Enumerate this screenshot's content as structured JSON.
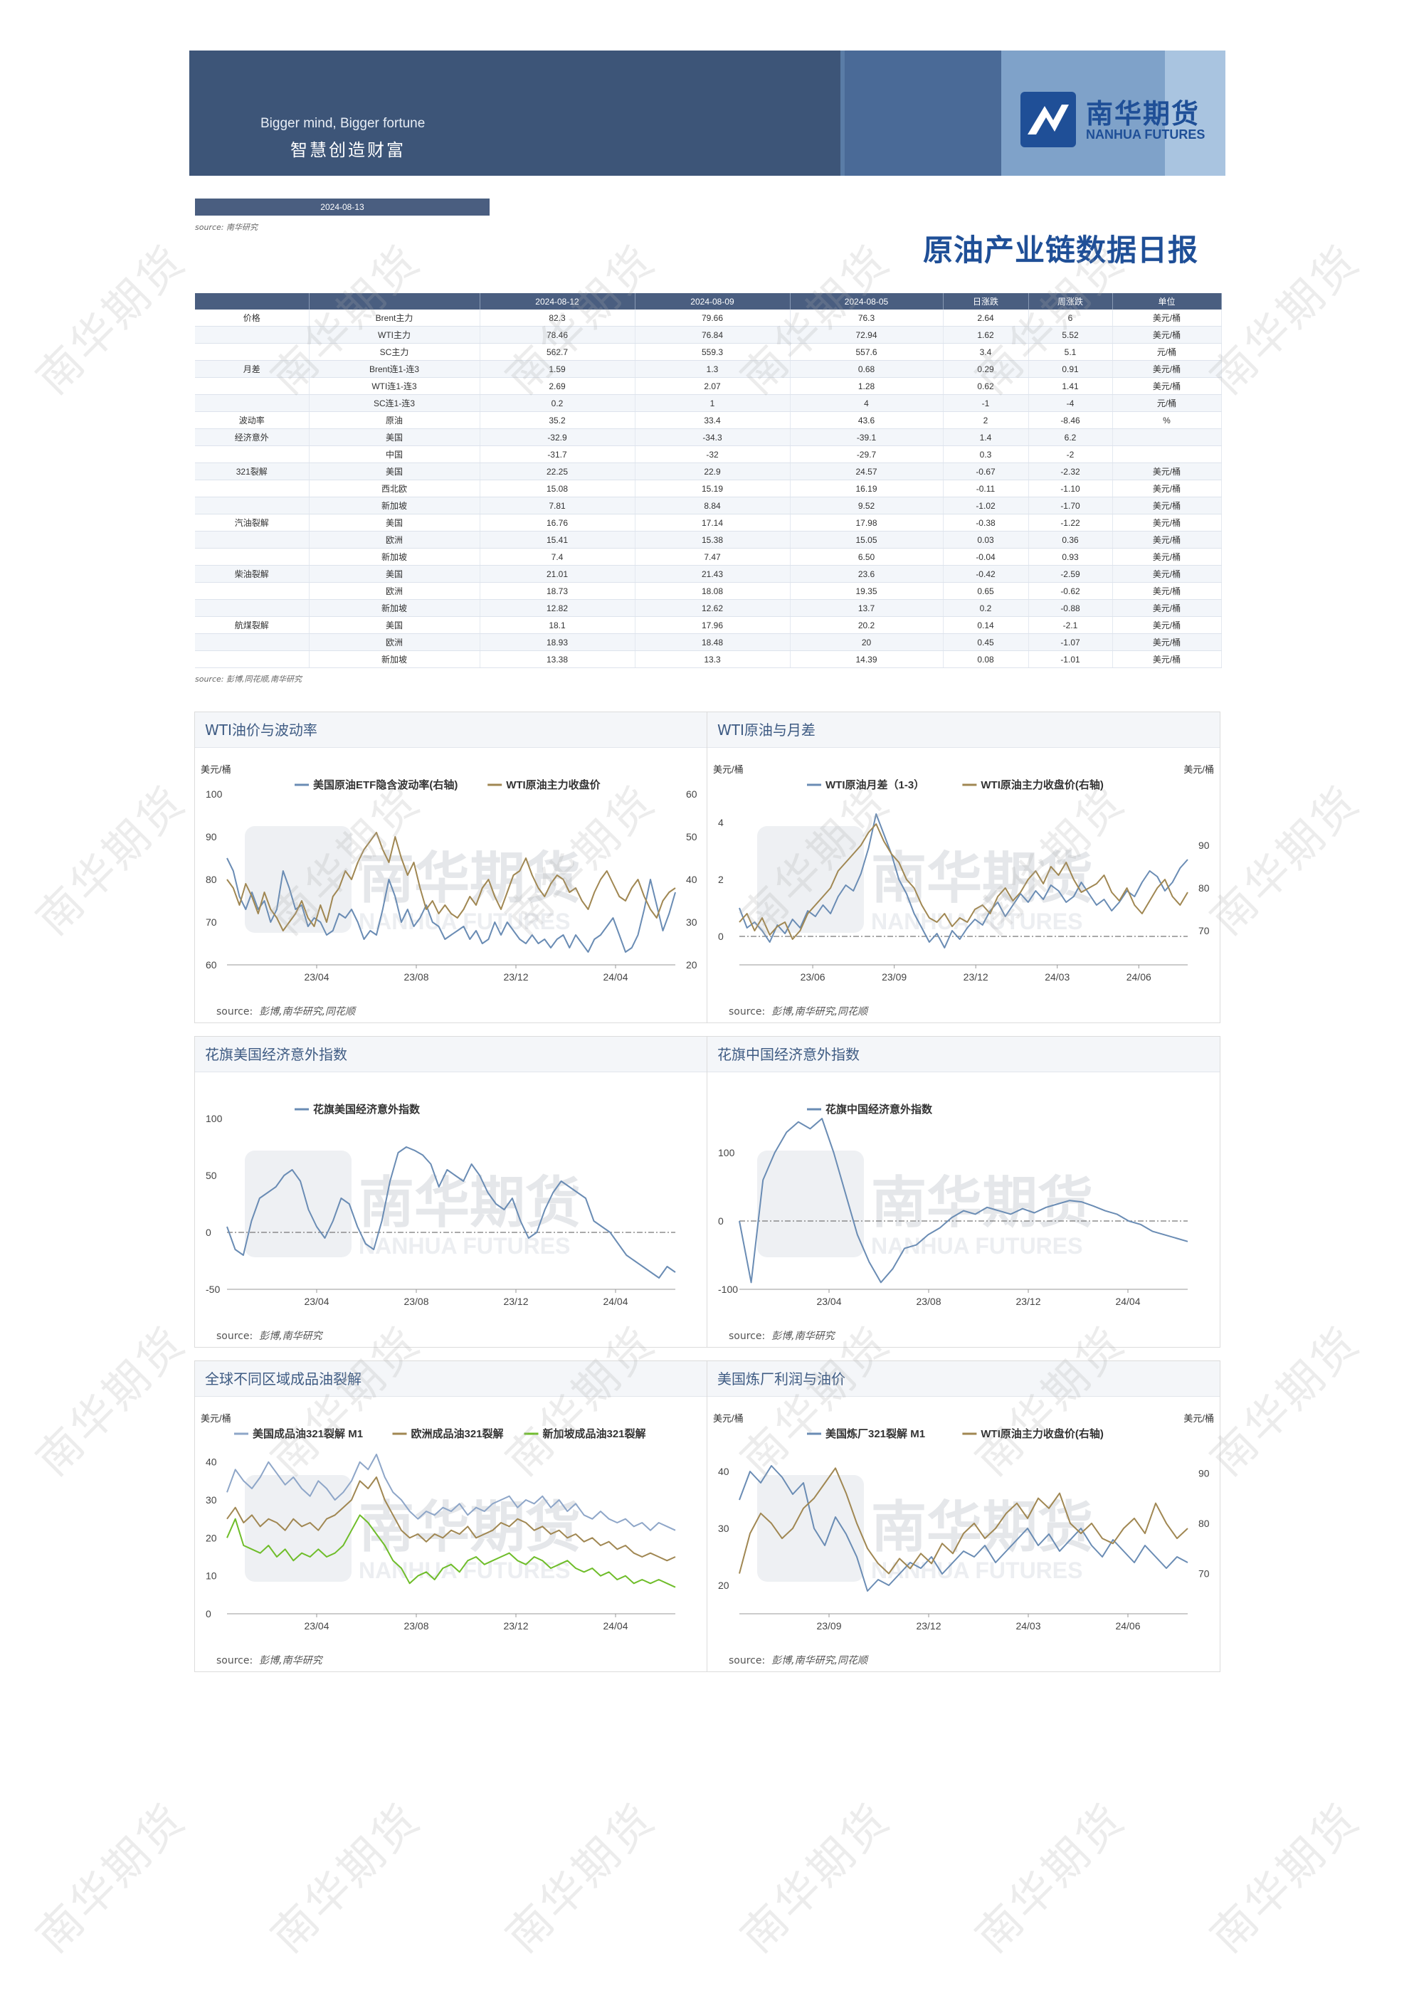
{
  "header": {
    "slogan_en": "Bigger mind, Bigger fortune",
    "slogan_cn": "智慧创造财富",
    "logo_cn": "南华期货",
    "logo_en": "NANHUA FUTURES"
  },
  "date": "2024-08-13",
  "source_top_label": "source:",
  "source_top_value": "南华研究",
  "title": "原油产业链数据日报",
  "table": {
    "headers": [
      "",
      "",
      "2024-08-12",
      "2024-08-09",
      "2024-08-05",
      "日涨跌",
      "周涨跌",
      "单位"
    ],
    "rows": [
      [
        "价格",
        "Brent主力",
        "82.3",
        "79.66",
        "76.3",
        "2.64",
        "6",
        "美元/桶"
      ],
      [
        "",
        "WTI主力",
        "78.46",
        "76.84",
        "72.94",
        "1.62",
        "5.52",
        "美元/桶"
      ],
      [
        "",
        "SC主力",
        "562.7",
        "559.3",
        "557.6",
        "3.4",
        "5.1",
        "元/桶"
      ],
      [
        "月差",
        "Brent连1-连3",
        "1.59",
        "1.3",
        "0.68",
        "0.29",
        "0.91",
        "美元/桶"
      ],
      [
        "",
        "WTI连1-连3",
        "2.69",
        "2.07",
        "1.28",
        "0.62",
        "1.41",
        "美元/桶"
      ],
      [
        "",
        "SC连1-连3",
        "0.2",
        "1",
        "4",
        "-1",
        "-4",
        "元/桶"
      ],
      [
        "波动率",
        "原油",
        "35.2",
        "33.4",
        "43.6",
        "2",
        "-8.46",
        "%"
      ],
      [
        "经济意外",
        "美国",
        "-32.9",
        "-34.3",
        "-39.1",
        "1.4",
        "6.2",
        ""
      ],
      [
        "",
        "中国",
        "-31.7",
        "-32",
        "-29.7",
        "0.3",
        "-2",
        ""
      ],
      [
        "321裂解",
        "美国",
        "22.25",
        "22.9",
        "24.57",
        "-0.67",
        "-2.32",
        "美元/桶"
      ],
      [
        "",
        "西北欧",
        "15.08",
        "15.19",
        "16.19",
        "-0.11",
        "-1.10",
        "美元/桶"
      ],
      [
        "",
        "新加坡",
        "7.81",
        "8.84",
        "9.52",
        "-1.02",
        "-1.70",
        "美元/桶"
      ],
      [
        "汽油裂解",
        "美国",
        "16.76",
        "17.14",
        "17.98",
        "-0.38",
        "-1.22",
        "美元/桶"
      ],
      [
        "",
        "欧洲",
        "15.41",
        "15.38",
        "15.05",
        "0.03",
        "0.36",
        "美元/桶"
      ],
      [
        "",
        "新加坡",
        "7.4",
        "7.47",
        "6.50",
        "-0.04",
        "0.93",
        "美元/桶"
      ],
      [
        "柴油裂解",
        "美国",
        "21.01",
        "21.43",
        "23.6",
        "-0.42",
        "-2.59",
        "美元/桶"
      ],
      [
        "",
        "欧洲",
        "18.73",
        "18.08",
        "19.35",
        "0.65",
        "-0.62",
        "美元/桶"
      ],
      [
        "",
        "新加坡",
        "12.82",
        "12.62",
        "13.7",
        "0.2",
        "-0.88",
        "美元/桶"
      ],
      [
        "航煤裂解",
        "美国",
        "18.1",
        "17.96",
        "20.2",
        "0.14",
        "-2.1",
        "美元/桶"
      ],
      [
        "",
        "欧洲",
        "18.93",
        "18.48",
        "20",
        "0.45",
        "-1.07",
        "美元/桶"
      ],
      [
        "",
        "新加坡",
        "13.38",
        "13.3",
        "14.39",
        "0.08",
        "-1.01",
        "美元/桶"
      ]
    ]
  },
  "table_source": "source: 彭博,同花顺,南华研究",
  "watermark_text": "南华期货",
  "panel_watermark_cn": "南华期货",
  "panel_watermark_en": "NANHUA FUTURES",
  "chart_data": [
    {
      "id": "wti-vol",
      "type": "line",
      "title": "WTI油价与波动率",
      "source_label": "source:",
      "source_value": "彭博,南华研究,同花顺",
      "left_unit": "美元/桶",
      "right_unit": "",
      "x_ticks": [
        "23/04",
        "23/08",
        "23/12",
        "24/04"
      ],
      "y_left": {
        "min": 60,
        "max": 100,
        "ticks": [
          60,
          70,
          80,
          90,
          100
        ]
      },
      "y_right": {
        "min": 20,
        "max": 60,
        "ticks": [
          20,
          30,
          40,
          50,
          60
        ]
      },
      "series": [
        {
          "name": "美国原油ETF隐含波动率(右轴)",
          "axis": "right",
          "color": "#6a8cb4",
          "values": [
            45,
            42,
            36,
            33,
            37,
            33,
            35,
            30,
            33,
            42,
            38,
            33,
            34,
            29,
            31,
            30,
            27,
            28,
            32,
            31,
            33,
            30,
            26,
            28,
            27,
            33,
            40,
            36,
            30,
            33,
            29,
            31,
            34,
            30,
            29,
            26,
            27,
            28,
            29,
            26,
            28,
            25,
            26,
            30,
            27,
            30,
            28,
            26,
            25,
            27,
            25,
            26,
            24,
            26,
            27,
            24,
            27,
            25,
            23,
            26,
            27,
            29,
            31,
            27,
            23,
            24,
            27,
            33,
            40,
            34,
            28,
            32,
            37
          ]
        },
        {
          "name": "WTI原油主力收盘价",
          "axis": "left",
          "color": "#a08752",
          "values": [
            80,
            78,
            74,
            79,
            76,
            72,
            77,
            73,
            71,
            68,
            70,
            72,
            75,
            71,
            69,
            74,
            70,
            76,
            78,
            82,
            80,
            84,
            87,
            89,
            91,
            87,
            84,
            90,
            85,
            81,
            84,
            78,
            73,
            75,
            72,
            74,
            72,
            71,
            73,
            76,
            74,
            78,
            80,
            76,
            73,
            77,
            81,
            82,
            85,
            81,
            78,
            76,
            79,
            81,
            80,
            77,
            78,
            75,
            73,
            77,
            80,
            82,
            79,
            76,
            75,
            78,
            80,
            76,
            73,
            71,
            75,
            77,
            78
          ]
        }
      ]
    },
    {
      "id": "wti-spread",
      "type": "line",
      "title": "WTI原油与月差",
      "source_label": "source:",
      "source_value": "彭博,南华研究,同花顺",
      "left_unit": "美元/桶",
      "right_unit": "美元/桶",
      "x_ticks": [
        "23/06",
        "23/09",
        "23/12",
        "24/03",
        "24/06"
      ],
      "y_left": {
        "min": -1,
        "max": 5,
        "ticks": [
          0,
          2,
          4
        ]
      },
      "y_right": {
        "min": 62,
        "max": 102,
        "ticks": [
          70,
          80,
          90
        ]
      },
      "zero_line": 0,
      "series": [
        {
          "name": "WTI原油月差（1-3）",
          "axis": "left",
          "color": "#6a8cb4",
          "values": [
            1,
            0.3,
            0.5,
            0.2,
            -0.2,
            0.4,
            0.1,
            0.6,
            0.3,
            0.9,
            0.7,
            1.1,
            0.8,
            1.4,
            1.8,
            1.6,
            2.2,
            3.1,
            4.3,
            3.6,
            2.9,
            2.0,
            1.5,
            0.8,
            0.3,
            -0.2,
            0.1,
            -0.4,
            0.2,
            -0.1,
            0.3,
            0.6,
            0.4,
            0.9,
            1.2,
            0.7,
            1.1,
            1.5,
            1.2,
            1.6,
            1.3,
            1.8,
            1.6,
            1.2,
            1.4,
            1.9,
            1.5,
            1.1,
            1.3,
            0.9,
            1.2,
            1.6,
            1.4,
            1.9,
            2.3,
            2.1,
            1.6,
            1.9,
            2.4,
            2.7
          ]
        },
        {
          "name": "WTI原油主力收盘价(右轴)",
          "axis": "right",
          "color": "#a08752",
          "values": [
            72,
            74,
            70,
            73,
            69,
            71,
            72,
            68,
            70,
            74,
            76,
            78,
            80,
            84,
            86,
            88,
            90,
            93,
            95,
            91,
            88,
            86,
            82,
            80,
            76,
            73,
            72,
            74,
            71,
            73,
            72,
            75,
            76,
            74,
            78,
            80,
            77,
            79,
            82,
            84,
            81,
            85,
            83,
            86,
            82,
            79,
            80,
            81,
            83,
            79,
            77,
            80,
            76,
            74,
            77,
            80,
            82,
            78,
            76,
            79
          ]
        }
      ]
    },
    {
      "id": "us-surprise",
      "type": "line",
      "title": "花旗美国经济意外指数",
      "source_label": "source:",
      "source_value": "彭博,南华研究",
      "left_unit": "",
      "right_unit": "",
      "x_ticks": [
        "23/04",
        "23/08",
        "23/12",
        "24/04"
      ],
      "y_left": {
        "min": -50,
        "max": 100,
        "ticks": [
          -50,
          0,
          50,
          100
        ]
      },
      "zero_line": 0,
      "series": [
        {
          "name": "花旗美国经济意外指数",
          "axis": "left",
          "color": "#6a8cb4",
          "values": [
            5,
            -15,
            -20,
            10,
            30,
            35,
            40,
            50,
            55,
            45,
            20,
            5,
            -5,
            10,
            30,
            25,
            5,
            -10,
            -15,
            10,
            45,
            70,
            75,
            72,
            68,
            60,
            40,
            55,
            50,
            45,
            60,
            50,
            35,
            25,
            20,
            30,
            10,
            -5,
            0,
            20,
            35,
            45,
            40,
            35,
            30,
            10,
            5,
            0,
            -10,
            -20,
            -25,
            -30,
            -35,
            -40,
            -30,
            -35
          ]
        }
      ]
    },
    {
      "id": "cn-surprise",
      "type": "line",
      "title": "花旗中国经济意外指数",
      "source_label": "source:",
      "source_value": "彭博,南华研究",
      "left_unit": "",
      "right_unit": "",
      "x_ticks": [
        "23/04",
        "23/08",
        "23/12",
        "24/04"
      ],
      "y_left": {
        "min": -100,
        "max": 150,
        "ticks": [
          -100,
          0,
          100
        ]
      },
      "zero_line": 0,
      "series": [
        {
          "name": "花旗中国经济意外指数",
          "axis": "left",
          "color": "#6a8cb4",
          "values": [
            0,
            -90,
            60,
            100,
            130,
            145,
            135,
            150,
            100,
            40,
            -20,
            -60,
            -90,
            -70,
            -40,
            -35,
            -20,
            -10,
            5,
            15,
            10,
            20,
            15,
            10,
            18,
            12,
            20,
            25,
            30,
            28,
            22,
            15,
            10,
            0,
            -5,
            -15,
            -20,
            -25,
            -30
          ]
        }
      ]
    },
    {
      "id": "global-crack",
      "type": "line",
      "title": "全球不同区域成品油裂解",
      "source_label": "source:",
      "source_value": "彭博,南华研究",
      "left_unit": "美元/桶",
      "right_unit": "",
      "x_ticks": [
        "23/04",
        "23/08",
        "23/12",
        "24/04"
      ],
      "y_left": {
        "min": 0,
        "max": 45,
        "ticks": [
          0,
          10,
          20,
          30,
          40
        ]
      },
      "series": [
        {
          "name": "美国成品油321裂解 M1",
          "axis": "left",
          "color": "#8ea6c8",
          "values": [
            32,
            38,
            35,
            33,
            36,
            40,
            37,
            34,
            36,
            33,
            31,
            35,
            33,
            30,
            32,
            35,
            40,
            38,
            42,
            36,
            32,
            30,
            27,
            25,
            27,
            26,
            28,
            27,
            29,
            26,
            28,
            27,
            29,
            30,
            31,
            28,
            30,
            29,
            31,
            28,
            30,
            27,
            29,
            26,
            25,
            27,
            25,
            24,
            25,
            23,
            24,
            22,
            24,
            23,
            22
          ]
        },
        {
          "name": "欧洲成品油321裂解",
          "axis": "left",
          "color": "#a08752",
          "values": [
            25,
            28,
            24,
            26,
            23,
            25,
            24,
            22,
            25,
            23,
            24,
            22,
            25,
            26,
            28,
            30,
            35,
            33,
            36,
            30,
            26,
            22,
            20,
            21,
            19,
            21,
            20,
            22,
            21,
            23,
            20,
            21,
            22,
            24,
            23,
            25,
            24,
            22,
            23,
            21,
            22,
            20,
            21,
            19,
            20,
            18,
            19,
            17,
            18,
            16,
            15,
            16,
            15,
            14,
            15
          ]
        },
        {
          "name": "新加坡成品油321裂解",
          "axis": "left",
          "color": "#6fbd2a",
          "values": [
            20,
            25,
            18,
            17,
            16,
            18,
            15,
            17,
            14,
            16,
            15,
            17,
            15,
            16,
            18,
            22,
            26,
            24,
            21,
            18,
            14,
            12,
            8,
            10,
            11,
            9,
            12,
            13,
            11,
            14,
            15,
            13,
            14,
            15,
            16,
            14,
            13,
            15,
            14,
            12,
            13,
            14,
            12,
            11,
            12,
            10,
            11,
            9,
            10,
            8,
            9,
            8,
            9,
            8,
            7
          ]
        }
      ]
    },
    {
      "id": "us-refinery",
      "type": "line",
      "title": "美国炼厂利润与油价",
      "source_label": "source:",
      "source_value": "彭博,南华研究,同花顺",
      "left_unit": "美元/桶",
      "right_unit": "美元/桶",
      "x_ticks": [
        "23/09",
        "23/12",
        "24/03",
        "24/06"
      ],
      "y_left": {
        "min": 15,
        "max": 45,
        "ticks": [
          20,
          30,
          40
        ]
      },
      "y_right": {
        "min": 62,
        "max": 96,
        "ticks": [
          70,
          80,
          90
        ]
      },
      "series": [
        {
          "name": "美国炼厂321裂解 M1",
          "axis": "left",
          "color": "#6a8cb4",
          "values": [
            35,
            40,
            38,
            41,
            39,
            36,
            38,
            30,
            27,
            32,
            29,
            25,
            19,
            21,
            20,
            22,
            24,
            23,
            25,
            22,
            24,
            26,
            25,
            27,
            24,
            26,
            28,
            30,
            27,
            29,
            26,
            28,
            30,
            27,
            25,
            28,
            26,
            24,
            27,
            25,
            23,
            25,
            24
          ]
        },
        {
          "name": "WTI原油主力收盘价(右轴)",
          "axis": "right",
          "color": "#a08752",
          "values": [
            70,
            78,
            82,
            80,
            77,
            79,
            83,
            85,
            88,
            91,
            86,
            80,
            75,
            72,
            70,
            73,
            71,
            74,
            72,
            76,
            74,
            78,
            80,
            77,
            79,
            82,
            84,
            81,
            85,
            83,
            86,
            80,
            78,
            80,
            77,
            76,
            79,
            81,
            78,
            84,
            80,
            77,
            79
          ]
        }
      ]
    }
  ]
}
